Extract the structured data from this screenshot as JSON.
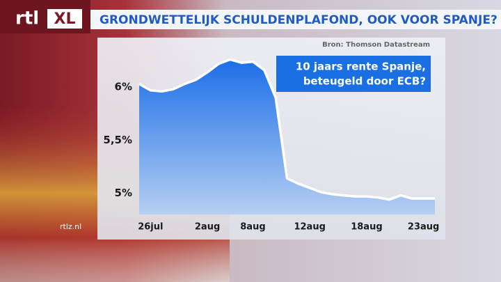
{
  "logo": {
    "left": "rtl",
    "right": "XL"
  },
  "website": "rtlz.nl",
  "chart_data": {
    "type": "area",
    "title": "GRONDWETTELIJK SCHULDENPLAFOND, OOK VOOR SPANJE?",
    "source": "Bron: Thomson Datastream",
    "annotation": [
      "10 jaars rente Spanje,",
      "beteugeld door ECB?"
    ],
    "categories": [
      null,
      "26jul",
      null,
      null,
      null,
      null,
      "2aug",
      null,
      null,
      null,
      "8aug",
      null,
      null,
      null,
      null,
      "12aug",
      null,
      null,
      null,
      null,
      "18aug",
      null,
      null,
      null,
      null,
      "23aug",
      null
    ],
    "values": [
      6.03,
      5.97,
      5.96,
      5.98,
      6.03,
      6.07,
      6.14,
      6.22,
      6.26,
      6.23,
      6.24,
      6.16,
      5.9,
      5.14,
      5.09,
      5.05,
      5.01,
      4.99,
      4.98,
      4.97,
      4.97,
      4.96,
      4.94,
      4.98,
      4.95,
      4.95,
      4.95
    ],
    "color": "#ffffff",
    "ylim": [
      4.8,
      6.375
    ],
    "yticks": [
      {
        "value": 5,
        "label": "5%"
      },
      {
        "value": 5.5,
        "label": "5,5%"
      },
      {
        "value": 6,
        "label": "6%"
      }
    ]
  }
}
